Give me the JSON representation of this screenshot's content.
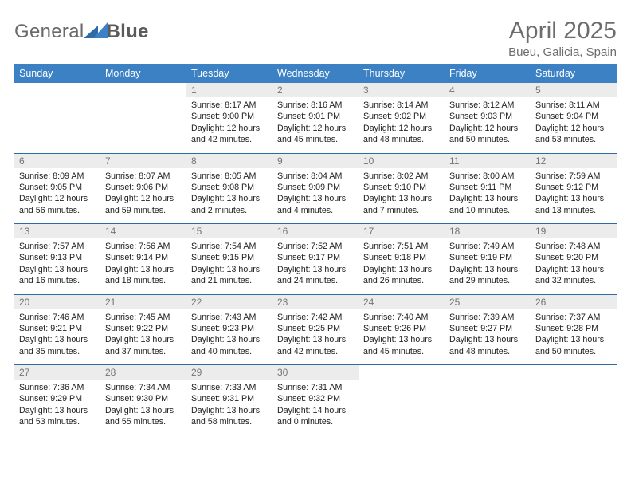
{
  "brand": {
    "main": "General",
    "accent": "Blue"
  },
  "title": "April 2025",
  "location": "Bueu, Galicia, Spain",
  "colors": {
    "header_blue": "#3c81c4",
    "divider_blue": "#2f6aa8",
    "date_bg": "#ececec",
    "date_color": "#757575",
    "title_gray": "#6d6d6d"
  },
  "weekday_labels": [
    "Sunday",
    "Monday",
    "Tuesday",
    "Wednesday",
    "Thursday",
    "Friday",
    "Saturday"
  ],
  "weeks": [
    [
      {
        "empty": true
      },
      {
        "empty": true
      },
      {
        "date": "1",
        "sunrise": "Sunrise: 8:17 AM",
        "sunset": "Sunset: 9:00 PM",
        "daylight": "Daylight: 12 hours and 42 minutes."
      },
      {
        "date": "2",
        "sunrise": "Sunrise: 8:16 AM",
        "sunset": "Sunset: 9:01 PM",
        "daylight": "Daylight: 12 hours and 45 minutes."
      },
      {
        "date": "3",
        "sunrise": "Sunrise: 8:14 AM",
        "sunset": "Sunset: 9:02 PM",
        "daylight": "Daylight: 12 hours and 48 minutes."
      },
      {
        "date": "4",
        "sunrise": "Sunrise: 8:12 AM",
        "sunset": "Sunset: 9:03 PM",
        "daylight": "Daylight: 12 hours and 50 minutes."
      },
      {
        "date": "5",
        "sunrise": "Sunrise: 8:11 AM",
        "sunset": "Sunset: 9:04 PM",
        "daylight": "Daylight: 12 hours and 53 minutes."
      }
    ],
    [
      {
        "date": "6",
        "sunrise": "Sunrise: 8:09 AM",
        "sunset": "Sunset: 9:05 PM",
        "daylight": "Daylight: 12 hours and 56 minutes."
      },
      {
        "date": "7",
        "sunrise": "Sunrise: 8:07 AM",
        "sunset": "Sunset: 9:06 PM",
        "daylight": "Daylight: 12 hours and 59 minutes."
      },
      {
        "date": "8",
        "sunrise": "Sunrise: 8:05 AM",
        "sunset": "Sunset: 9:08 PM",
        "daylight": "Daylight: 13 hours and 2 minutes."
      },
      {
        "date": "9",
        "sunrise": "Sunrise: 8:04 AM",
        "sunset": "Sunset: 9:09 PM",
        "daylight": "Daylight: 13 hours and 4 minutes."
      },
      {
        "date": "10",
        "sunrise": "Sunrise: 8:02 AM",
        "sunset": "Sunset: 9:10 PM",
        "daylight": "Daylight: 13 hours and 7 minutes."
      },
      {
        "date": "11",
        "sunrise": "Sunrise: 8:00 AM",
        "sunset": "Sunset: 9:11 PM",
        "daylight": "Daylight: 13 hours and 10 minutes."
      },
      {
        "date": "12",
        "sunrise": "Sunrise: 7:59 AM",
        "sunset": "Sunset: 9:12 PM",
        "daylight": "Daylight: 13 hours and 13 minutes."
      }
    ],
    [
      {
        "date": "13",
        "sunrise": "Sunrise: 7:57 AM",
        "sunset": "Sunset: 9:13 PM",
        "daylight": "Daylight: 13 hours and 16 minutes."
      },
      {
        "date": "14",
        "sunrise": "Sunrise: 7:56 AM",
        "sunset": "Sunset: 9:14 PM",
        "daylight": "Daylight: 13 hours and 18 minutes."
      },
      {
        "date": "15",
        "sunrise": "Sunrise: 7:54 AM",
        "sunset": "Sunset: 9:15 PM",
        "daylight": "Daylight: 13 hours and 21 minutes."
      },
      {
        "date": "16",
        "sunrise": "Sunrise: 7:52 AM",
        "sunset": "Sunset: 9:17 PM",
        "daylight": "Daylight: 13 hours and 24 minutes."
      },
      {
        "date": "17",
        "sunrise": "Sunrise: 7:51 AM",
        "sunset": "Sunset: 9:18 PM",
        "daylight": "Daylight: 13 hours and 26 minutes."
      },
      {
        "date": "18",
        "sunrise": "Sunrise: 7:49 AM",
        "sunset": "Sunset: 9:19 PM",
        "daylight": "Daylight: 13 hours and 29 minutes."
      },
      {
        "date": "19",
        "sunrise": "Sunrise: 7:48 AM",
        "sunset": "Sunset: 9:20 PM",
        "daylight": "Daylight: 13 hours and 32 minutes."
      }
    ],
    [
      {
        "date": "20",
        "sunrise": "Sunrise: 7:46 AM",
        "sunset": "Sunset: 9:21 PM",
        "daylight": "Daylight: 13 hours and 35 minutes."
      },
      {
        "date": "21",
        "sunrise": "Sunrise: 7:45 AM",
        "sunset": "Sunset: 9:22 PM",
        "daylight": "Daylight: 13 hours and 37 minutes."
      },
      {
        "date": "22",
        "sunrise": "Sunrise: 7:43 AM",
        "sunset": "Sunset: 9:23 PM",
        "daylight": "Daylight: 13 hours and 40 minutes."
      },
      {
        "date": "23",
        "sunrise": "Sunrise: 7:42 AM",
        "sunset": "Sunset: 9:25 PM",
        "daylight": "Daylight: 13 hours and 42 minutes."
      },
      {
        "date": "24",
        "sunrise": "Sunrise: 7:40 AM",
        "sunset": "Sunset: 9:26 PM",
        "daylight": "Daylight: 13 hours and 45 minutes."
      },
      {
        "date": "25",
        "sunrise": "Sunrise: 7:39 AM",
        "sunset": "Sunset: 9:27 PM",
        "daylight": "Daylight: 13 hours and 48 minutes."
      },
      {
        "date": "26",
        "sunrise": "Sunrise: 7:37 AM",
        "sunset": "Sunset: 9:28 PM",
        "daylight": "Daylight: 13 hours and 50 minutes."
      }
    ],
    [
      {
        "date": "27",
        "sunrise": "Sunrise: 7:36 AM",
        "sunset": "Sunset: 9:29 PM",
        "daylight": "Daylight: 13 hours and 53 minutes."
      },
      {
        "date": "28",
        "sunrise": "Sunrise: 7:34 AM",
        "sunset": "Sunset: 9:30 PM",
        "daylight": "Daylight: 13 hours and 55 minutes."
      },
      {
        "date": "29",
        "sunrise": "Sunrise: 7:33 AM",
        "sunset": "Sunset: 9:31 PM",
        "daylight": "Daylight: 13 hours and 58 minutes."
      },
      {
        "date": "30",
        "sunrise": "Sunrise: 7:31 AM",
        "sunset": "Sunset: 9:32 PM",
        "daylight": "Daylight: 14 hours and 0 minutes."
      },
      {
        "empty": true
      },
      {
        "empty": true
      },
      {
        "empty": true
      }
    ]
  ]
}
